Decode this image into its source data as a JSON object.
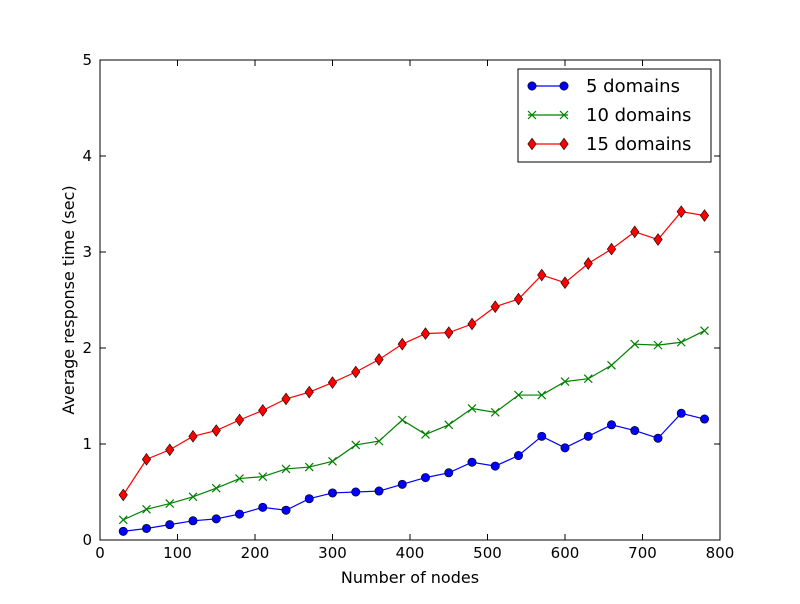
{
  "chart_data": {
    "type": "line",
    "title": "",
    "xlabel": "Number of nodes",
    "ylabel": "Average response time (sec)",
    "xlim": [
      0,
      800
    ],
    "ylim": [
      0,
      5
    ],
    "xticks": [
      0,
      100,
      200,
      300,
      400,
      500,
      600,
      700,
      800
    ],
    "yticks": [
      0,
      1,
      2,
      3,
      4,
      5
    ],
    "grid": false,
    "legend_position": "top-right",
    "x": [
      30,
      60,
      90,
      120,
      150,
      180,
      210,
      240,
      270,
      300,
      330,
      360,
      390,
      420,
      450,
      480,
      510,
      540,
      570,
      600,
      630,
      660,
      690,
      720,
      750,
      780
    ],
    "series": [
      {
        "name": "5 domains",
        "color": "#0000ff",
        "marker": "circle",
        "values": [
          0.09,
          0.12,
          0.16,
          0.2,
          0.22,
          0.27,
          0.34,
          0.31,
          0.43,
          0.49,
          0.5,
          0.51,
          0.58,
          0.65,
          0.7,
          0.81,
          0.77,
          0.88,
          1.08,
          0.96,
          1.08,
          1.2,
          1.14,
          1.06,
          1.32,
          1.26
        ]
      },
      {
        "name": "10 domains",
        "color": "#008000",
        "marker": "x",
        "values": [
          0.21,
          0.32,
          0.38,
          0.45,
          0.54,
          0.64,
          0.66,
          0.74,
          0.76,
          0.82,
          0.99,
          1.03,
          1.25,
          1.1,
          1.2,
          1.37,
          1.33,
          1.51,
          1.51,
          1.65,
          1.68,
          1.82,
          2.04,
          2.03,
          2.06,
          2.18
        ]
      },
      {
        "name": "15 domains",
        "color": "#ff0000",
        "marker": "diamond",
        "values": [
          0.47,
          0.84,
          0.94,
          1.08,
          1.14,
          1.25,
          1.35,
          1.47,
          1.54,
          1.64,
          1.75,
          1.88,
          2.04,
          2.15,
          2.16,
          2.25,
          2.43,
          2.51,
          2.76,
          2.68,
          2.88,
          3.03,
          3.21,
          3.13,
          3.42,
          3.38
        ]
      }
    ]
  }
}
